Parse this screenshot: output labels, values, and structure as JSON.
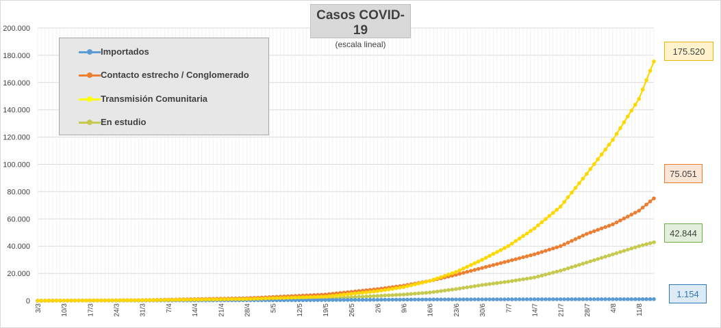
{
  "chart_data": {
    "type": "line",
    "title": "Casos COVID-19",
    "subtitle": "(escala lineal)",
    "ylim": [
      0,
      200000
    ],
    "y_ticks": [
      "0",
      "20.000",
      "40.000",
      "60.000",
      "80.000",
      "100.000",
      "120.000",
      "140.000",
      "160.000",
      "180.000",
      "200.000"
    ],
    "x_tick_labels": [
      "3/3",
      "10/3",
      "17/3",
      "24/3",
      "31/3",
      "7/4",
      "14/4",
      "21/4",
      "28/4",
      "5/5",
      "12/5",
      "19/5",
      "26/5",
      "2/6",
      "9/6",
      "16/6",
      "23/6",
      "30/6",
      "7/7",
      "14/7",
      "21/7",
      "28/7",
      "4/8",
      "11/8"
    ],
    "grid": true,
    "legend_position": "top-left",
    "num_points": 166,
    "series": [
      {
        "name": "Importados",
        "color": "#5b9bd5",
        "x": [
          "3/3",
          "12/5",
          "16/6",
          "14/7",
          "11/8",
          "15/8"
        ],
        "y": [
          0,
          350,
          900,
          1050,
          1120,
          1154
        ]
      },
      {
        "name": "Contacto estrecho / Conglomerado",
        "color": "#ed7d31",
        "x": [
          "3/3",
          "31/3",
          "28/4",
          "19/5",
          "26/5",
          "2/6",
          "9/6",
          "16/6",
          "23/6",
          "30/6",
          "7/7",
          "14/7",
          "21/7",
          "28/7",
          "4/8",
          "11/8",
          "15/8"
        ],
        "y": [
          0,
          400,
          1800,
          4500,
          6500,
          8500,
          11000,
          14500,
          19000,
          24000,
          29000,
          34000,
          40000,
          49000,
          56000,
          66000,
          75051
        ]
      },
      {
        "name": "Transmisión Comunitaria",
        "color": "#ffd700",
        "x": [
          "3/3",
          "31/3",
          "28/4",
          "19/5",
          "26/5",
          "2/6",
          "9/6",
          "16/6",
          "23/6",
          "30/6",
          "7/7",
          "14/7",
          "21/7",
          "28/7",
          "4/8",
          "11/8",
          "15/8"
        ],
        "y": [
          0,
          300,
          1200,
          3000,
          5000,
          7000,
          10000,
          14500,
          21000,
          30000,
          40000,
          53000,
          69000,
          93000,
          118000,
          148000,
          175520
        ]
      },
      {
        "name": "En estudio",
        "color": "#c5c94d",
        "x": [
          "3/3",
          "31/3",
          "28/4",
          "19/5",
          "26/5",
          "2/6",
          "9/6",
          "16/6",
          "23/6",
          "30/6",
          "7/7",
          "14/7",
          "21/7",
          "28/7",
          "4/8",
          "11/8",
          "15/8"
        ],
        "y": [
          0,
          150,
          500,
          1500,
          2500,
          3500,
          4500,
          6000,
          8500,
          11500,
          14000,
          17000,
          22000,
          28000,
          34000,
          40000,
          42844
        ]
      }
    ],
    "end_labels": [
      {
        "text": "175.520",
        "bg": "#fff2cc",
        "border": "#e6b800",
        "text_color": "#404040"
      },
      {
        "text": "75.051",
        "bg": "#fbe5d6",
        "border": "#ed7d31",
        "text_color": "#404040"
      },
      {
        "text": "42.844",
        "bg": "#e2efda",
        "border": "#70ad47",
        "text_color": "#404040"
      },
      {
        "text": "1.154",
        "bg": "#ddebf7",
        "border": "#2e75b6",
        "text_color": "#2e75b6"
      }
    ]
  }
}
